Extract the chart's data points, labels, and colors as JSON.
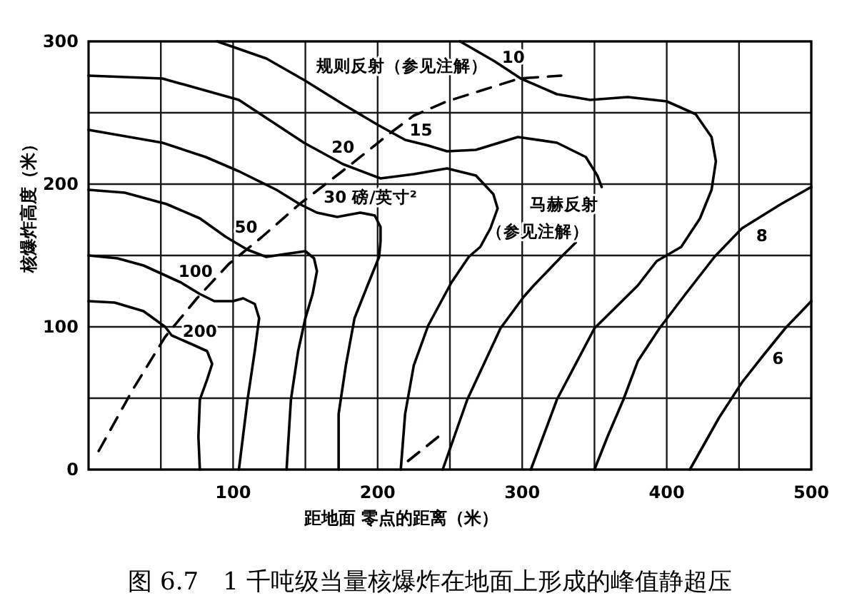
{
  "chart_data": {
    "type": "line",
    "title": "图 6.7　1 千吨级当量核爆炸在地面上形成的峰值静超压",
    "xlabel": "距地面 零点的距离（米）",
    "ylabel": "核爆炸高度（米）",
    "xlim": [
      0,
      500
    ],
    "ylim": [
      0,
      300
    ],
    "xticks": [
      {
        "value": 50,
        "label": null
      },
      100,
      {
        "value": 150,
        "label": null
      },
      200,
      {
        "value": 250,
        "label": null
      },
      300,
      {
        "value": 350,
        "label": null
      },
      400,
      {
        "value": 450,
        "label": null
      },
      500
    ],
    "yticks": [
      0,
      {
        "value": 50,
        "label": null
      },
      100,
      {
        "value": 150,
        "label": null
      },
      200,
      {
        "value": 250,
        "label": null
      },
      300
    ],
    "grid": true,
    "line_style": "solid",
    "series": [
      {
        "name": "200",
        "color": "#000000",
        "x": [
          0,
          18,
          38,
          53,
          57.5,
          71,
          82,
          85.5,
          82,
          77,
          76,
          77
        ],
        "values": [
          118,
          117,
          111,
          100,
          94,
          88,
          83,
          74,
          63,
          49,
          23,
          0
        ]
      },
      {
        "name": "100",
        "color": "#000000",
        "x": [
          0,
          20,
          38,
          64,
          77,
          87,
          100,
          107,
          115,
          118,
          115,
          110,
          104
        ],
        "values": [
          150,
          148,
          143,
          131,
          123,
          118,
          118,
          120,
          116,
          106,
          83,
          49,
          0
        ]
      },
      {
        "name": "50",
        "color": "#000000",
        "x": [
          0,
          25,
          54,
          77,
          95,
          110,
          123,
          136,
          150,
          156,
          158,
          155,
          150,
          145,
          140,
          137
        ],
        "values": [
          196,
          194,
          186,
          176,
          163,
          154,
          149,
          151,
          153,
          148,
          139,
          123,
          106,
          83,
          49,
          0
        ]
      },
      {
        "name": "30 磅/英寸²",
        "color": "#000000",
        "x": [
          0,
          51,
          81,
          104,
          130,
          146,
          158,
          172,
          188,
          198,
          202,
          202,
          201,
          193,
          184,
          178,
          173,
          173
        ],
        "values": [
          238,
          229,
          219,
          209,
          196,
          186,
          180,
          177,
          180,
          178,
          170,
          160,
          149,
          129,
          106,
          73,
          39,
          0
        ]
      },
      {
        "name": "20",
        "color": "#000000",
        "x": [
          0,
          51,
          104,
          149,
          176,
          202,
          225,
          248,
          268,
          280,
          283,
          278,
          271,
          263,
          251,
          235,
          225,
          219,
          216
        ],
        "values": [
          276,
          274,
          259,
          229,
          214,
          204,
          207,
          211,
          206,
          193,
          183,
          169,
          156,
          149,
          131,
          101,
          73,
          39,
          0
        ]
      },
      {
        "name": "15",
        "color": "#000000",
        "x": [
          89,
          123,
          149,
          176,
          201,
          219,
          235,
          248,
          268,
          297,
          324,
          344,
          352,
          355,
          null,
          337,
          327,
          308,
          301,
          285,
          262,
          245
        ],
        "values": [
          300,
          288,
          273,
          256,
          241,
          231,
          227,
          223,
          224,
          233,
          229,
          219,
          206,
          198,
          null,
          159,
          149,
          129,
          121,
          99,
          49,
          0
        ]
      },
      {
        "name": "10",
        "color": "#000000",
        "x": [
          257,
          281,
          299,
          324,
          347,
          373,
          400,
          420,
          431,
          434,
          431,
          423,
          410,
          393,
          380,
          350,
          324,
          306
        ],
        "values": [
          300,
          286,
          274,
          263,
          259,
          261,
          258,
          249,
          233,
          216,
          196,
          176,
          156,
          146,
          129,
          99,
          49,
          0
        ]
      },
      {
        "name": "8",
        "color": "#000000",
        "x": [
          500,
          479,
          452,
          433,
          413,
          395,
          380,
          370,
          359,
          350
        ],
        "values": [
          198,
          186,
          169,
          149,
          123,
          99,
          76,
          49,
          23,
          0
        ]
      },
      {
        "name": "6",
        "color": "#000000",
        "x": [
          500,
          482,
          466,
          452,
          436,
          416
        ],
        "values": [
          118,
          99,
          79,
          61,
          36,
          0
        ]
      },
      {
        "color": "#000000",
        "line_style": "dashed",
        "x": [
          7,
          30,
          53,
          75,
          97,
          120,
          146,
          178,
          209,
          225,
          248,
          273,
          298,
          327
        ],
        "values": [
          13,
          55,
          93,
          120,
          144,
          163,
          186,
          211,
          236,
          248,
          258,
          266,
          274,
          276
        ]
      },
      {
        "color": "#000000",
        "line_style": "dashed",
        "x": [
          221,
          242
        ],
        "values": [
          6,
          23
        ]
      }
    ],
    "annotations": [
      "规则反射（参见注解）",
      "马赫反射",
      "（参见注解）"
    ]
  }
}
